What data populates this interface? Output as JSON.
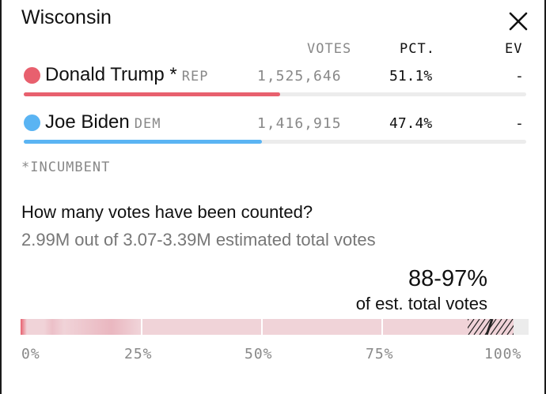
{
  "state": "Wisconsin",
  "columns": {
    "votes": "VOTES",
    "pct": "PCT.",
    "ev": "EV"
  },
  "candidates": [
    {
      "name": "Donald Trump *",
      "party": "REP",
      "votes": "1,525,646",
      "pct": "51.1%",
      "ev": "-",
      "color": "#e8606e",
      "bar_fraction": 0.511
    },
    {
      "name": "Joe Biden",
      "party": "DEM",
      "votes": "1,416,915",
      "pct": "47.4%",
      "ev": "-",
      "color": "#5ab4f3",
      "bar_fraction": 0.474
    }
  ],
  "incumbent_note": "*INCUMBENT",
  "counted": {
    "question": "How many votes have been counted?",
    "estimate": "2.99M out of 3.07-3.39M estimated total votes",
    "range": "88-97%",
    "range_label": "of est. total votes",
    "range_low": 0.88,
    "range_high": 0.97,
    "axis_labels": [
      "0%",
      "25%",
      "50%",
      "75%",
      "100%"
    ],
    "colors": {
      "counted": "#f0d3d8",
      "hatch": "#222222",
      "accent": "#e8606e"
    }
  }
}
